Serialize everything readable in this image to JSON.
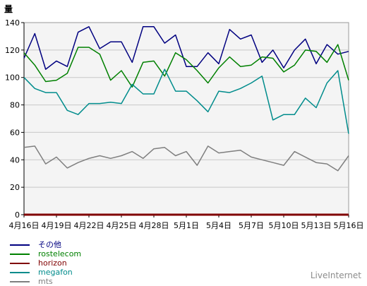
{
  "chart_data": {
    "type": "line",
    "ylabel": "量",
    "ylim": [
      0,
      140
    ],
    "yticks": [
      0,
      20,
      40,
      60,
      80,
      100,
      120,
      140
    ],
    "grid": true,
    "x": [
      "4月16日",
      "4月17日",
      "4月18日",
      "4月19日",
      "4月20日",
      "4月21日",
      "4月22日",
      "4月23日",
      "4月24日",
      "4月25日",
      "4月26日",
      "4月27日",
      "4月28日",
      "4月29日",
      "4月30日",
      "5月1日",
      "5月2日",
      "5月3日",
      "5月4日",
      "5月5日",
      "5月6日",
      "5月7日",
      "5月8日",
      "5月9日",
      "5月10日",
      "5月11日",
      "5月12日",
      "5月13日",
      "5月14日",
      "5月15日",
      "5月16日"
    ],
    "xticks": [
      "4月16日",
      "4月19日",
      "4月22日",
      "4月25日",
      "4月28日",
      "5月1日",
      "5月4日",
      "5月7日",
      "5月10日",
      "5月13日",
      "5月16日"
    ],
    "series": [
      {
        "name": "その他",
        "color": "#000080",
        "values": [
          114,
          132,
          106,
          112,
          108,
          133,
          137,
          121,
          126,
          126,
          111,
          137,
          137,
          125,
          131,
          108,
          108,
          118,
          110,
          135,
          128,
          131,
          111,
          120,
          107,
          120,
          128,
          110,
          124,
          117,
          119
        ]
      },
      {
        "name": "rostelecom",
        "color": "#008000",
        "values": [
          118,
          109,
          97,
          98,
          103,
          122,
          122,
          117,
          98,
          105,
          93,
          111,
          112,
          101,
          118,
          113,
          105,
          96,
          107,
          115,
          108,
          109,
          115,
          114,
          104,
          109,
          120,
          119,
          111,
          124,
          98
        ]
      },
      {
        "name": "horizon",
        "color": "#800000",
        "values": [
          0,
          0,
          0,
          0,
          0,
          0,
          0,
          0,
          0,
          0,
          0,
          0,
          0,
          0,
          0,
          0,
          0,
          0,
          0,
          0,
          0,
          0,
          0,
          0,
          0,
          0,
          0,
          0,
          0,
          0,
          0
        ]
      },
      {
        "name": "megafon",
        "color": "#008c8c",
        "values": [
          100,
          92,
          89,
          89,
          76,
          73,
          81,
          81,
          82,
          81,
          95,
          88,
          88,
          106,
          90,
          90,
          83,
          75,
          90,
          89,
          92,
          96,
          101,
          69,
          73,
          73,
          85,
          78,
          96,
          105,
          59
        ]
      },
      {
        "name": "mts",
        "color": "#7f7f7f",
        "values": [
          49,
          50,
          37,
          42,
          34,
          38,
          41,
          43,
          41,
          43,
          46,
          41,
          48,
          49,
          43,
          46,
          36,
          50,
          45,
          46,
          47,
          42,
          40,
          38,
          36,
          46,
          42,
          38,
          37,
          32,
          43
        ]
      }
    ]
  },
  "brand": "LiveInternet"
}
